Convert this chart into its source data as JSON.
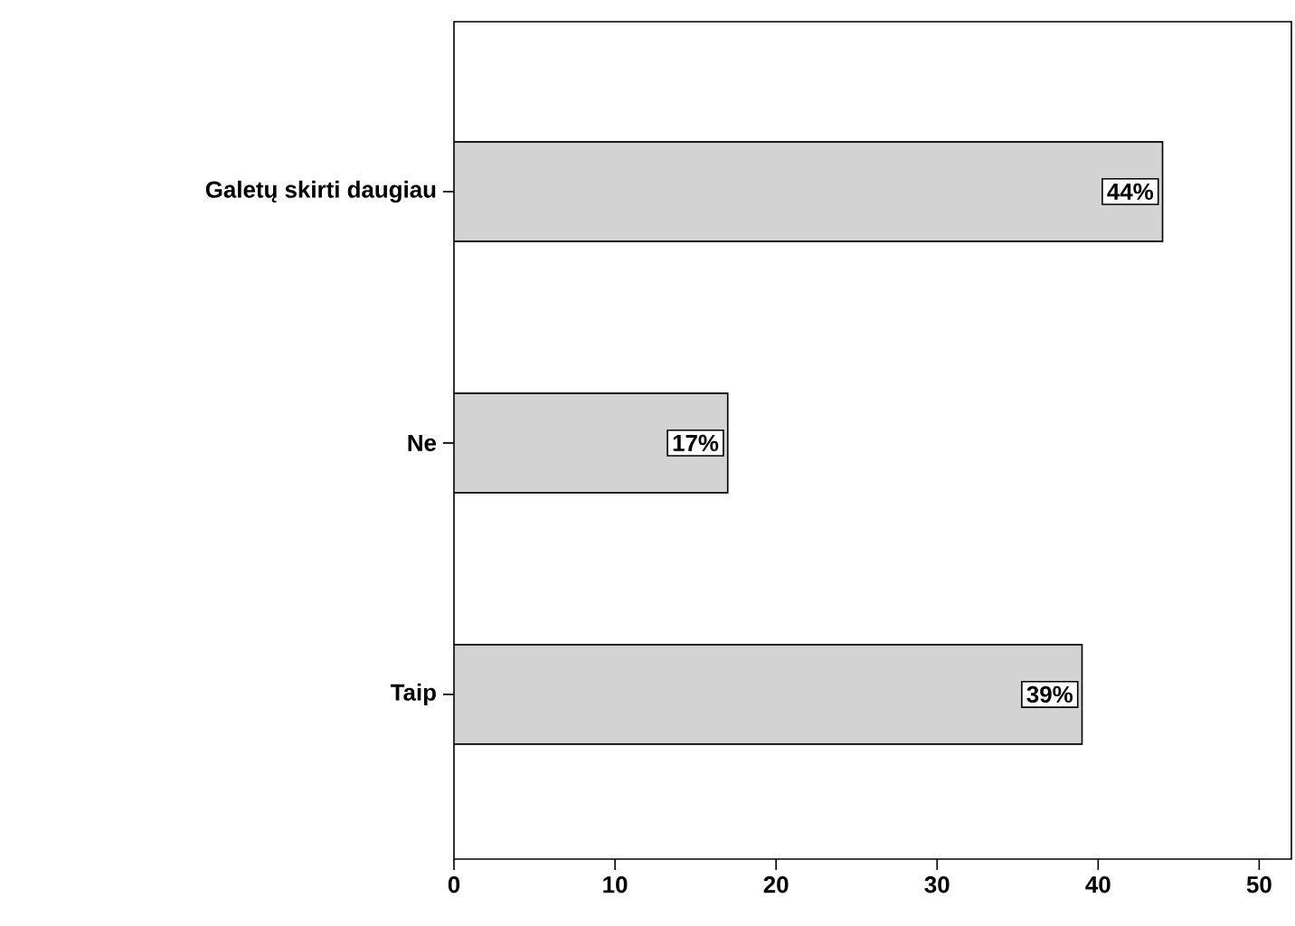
{
  "chart_data": {
    "type": "bar",
    "orientation": "horizontal",
    "categories": [
      "Galetų skirti daugiau",
      "Ne",
      "Taip"
    ],
    "values": [
      44,
      17,
      39
    ],
    "value_labels": [
      "44%",
      "17%",
      "39%"
    ],
    "color": "#d3d3d3",
    "xlim": [
      0,
      52
    ],
    "xticks": [
      0,
      10,
      20,
      30,
      40,
      50
    ]
  }
}
